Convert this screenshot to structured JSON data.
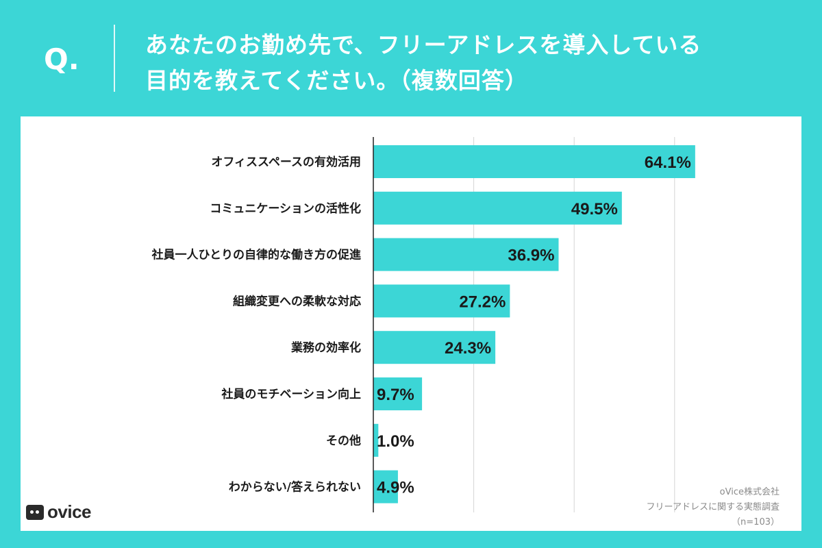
{
  "header": {
    "q_mark": "Q.",
    "title_line1": "あなたのお勤め先で、フリーアドレスを導入している",
    "title_line2": "目的を教えてください。（複数回答）"
  },
  "chart_data": {
    "type": "bar",
    "orientation": "horizontal",
    "categories": [
      "オフィススペースの有効活用",
      "コミュニケーションの活性化",
      "社員一人ひとりの自律的な働き方の促進",
      "組織変更への柔軟な対応",
      "業務の効率化",
      "社員のモチベーション向上",
      "その他",
      "わからない/答えられない"
    ],
    "values": [
      64.1,
      49.5,
      36.9,
      27.2,
      24.3,
      9.7,
      1.0,
      4.9
    ],
    "value_labels": [
      "64.1%",
      "49.5%",
      "36.9%",
      "27.2%",
      "24.3%",
      "9.7%",
      "1.0%",
      "4.9%"
    ],
    "xlim": [
      0,
      70
    ],
    "grid": true,
    "bar_color": "#3cd6d6",
    "unit": "%"
  },
  "footer": {
    "logo_text": "ovice",
    "source_line1": "oVice株式会社",
    "source_line2": "フリーアドレスに関する実態調査",
    "source_line3": "（n=103）"
  },
  "colors": {
    "background": "#3cd6d6",
    "panel": "#ffffff",
    "text": "#1a1a1a"
  }
}
